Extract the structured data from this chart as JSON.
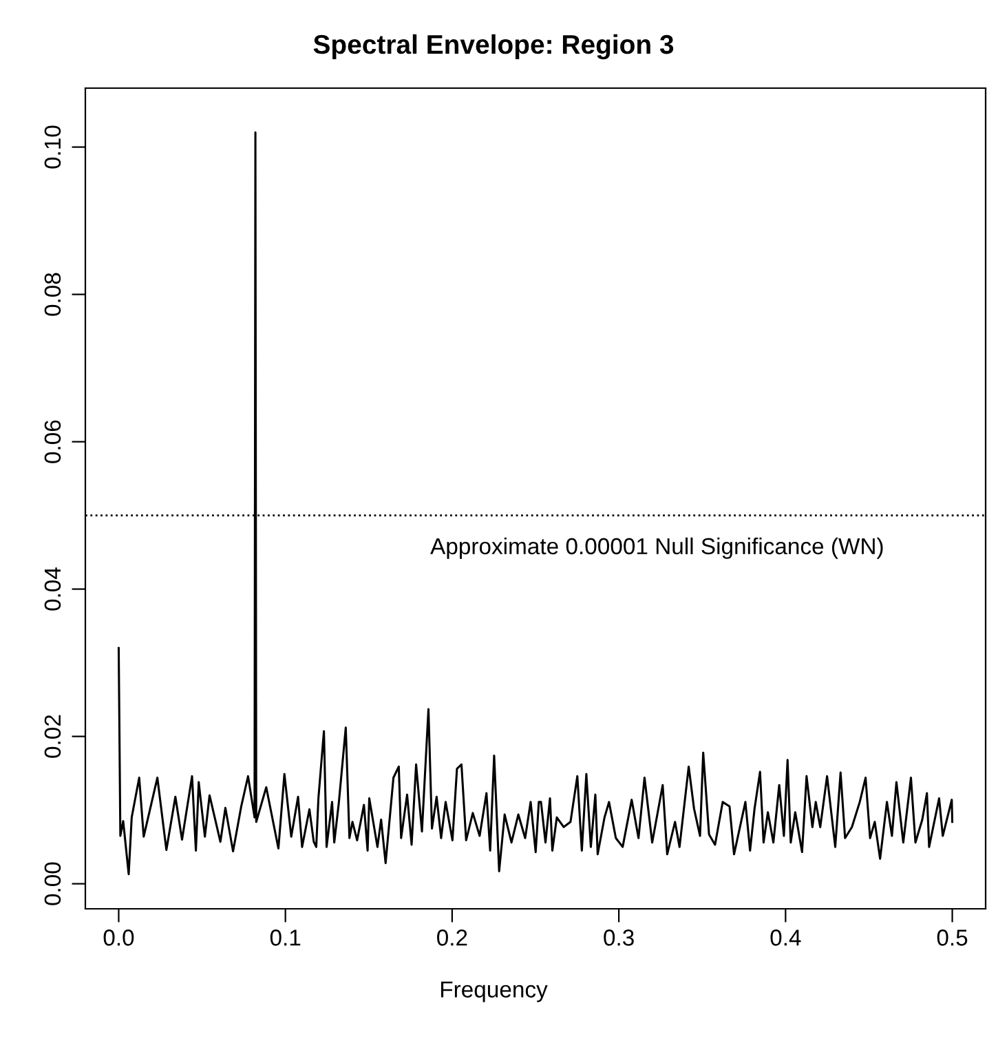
{
  "chart_data": {
    "type": "line",
    "title": "Spectral Envelope: Region 3",
    "xlabel": "Frequency",
    "xlim": [
      -0.02,
      0.52
    ],
    "ylim": [
      -0.0034,
      0.108
    ],
    "xticks": [
      {
        "value": 0,
        "label": "0.0"
      },
      {
        "value": 0.1,
        "label": "0.1"
      },
      {
        "value": 0.2,
        "label": "0.2"
      },
      {
        "value": 0.3,
        "label": "0.3"
      },
      {
        "value": 0.4,
        "label": "0.4"
      },
      {
        "value": 0.5,
        "label": "0.5"
      }
    ],
    "yticks": [
      {
        "value": 0,
        "label": "0.00"
      },
      {
        "value": 0.02,
        "label": "0.02"
      },
      {
        "value": 0.04,
        "label": "0.04"
      },
      {
        "value": 0.06,
        "label": "0.06"
      },
      {
        "value": 0.08,
        "label": "0.08"
      },
      {
        "value": 0.1,
        "label": "0.10"
      }
    ],
    "grid": false,
    "marker": "none",
    "line_style": "solid",
    "ref_lines": [
      {
        "axis": "y",
        "value": 0.05,
        "label": "Approximate 0.00001 Null Significance (WN)",
        "line_style": "dotted",
        "color": "#000000"
      }
    ],
    "series": [
      {
        "color": "#000000",
        "x": [
          0.0,
          0.001,
          0.0027,
          0.006,
          0.0078,
          0.0123,
          0.015,
          0.0232,
          0.0286,
          0.034,
          0.038,
          0.044,
          0.0463,
          0.048,
          0.0517,
          0.0545,
          0.061,
          0.064,
          0.0686,
          0.0735,
          0.0776,
          0.0815,
          0.082,
          0.0825,
          0.0885,
          0.0958,
          0.0994,
          0.1035,
          0.1076,
          0.11,
          0.1144,
          0.117,
          0.1185,
          0.1198,
          0.1231,
          0.1247,
          0.128,
          0.1293,
          0.132,
          0.1362,
          0.1384,
          0.1402,
          0.143,
          0.1471,
          0.1493,
          0.1503,
          0.1552,
          0.1574,
          0.1601,
          0.1648,
          0.168,
          0.1694,
          0.173,
          0.1757,
          0.1784,
          0.1819,
          0.1858,
          0.1879,
          0.1907,
          0.1934,
          0.1961,
          0.2002,
          0.2029,
          0.2056,
          0.2084,
          0.2124,
          0.2165,
          0.2206,
          0.2228,
          0.2252,
          0.2282,
          0.2315,
          0.2356,
          0.2397,
          0.2438,
          0.2471,
          0.2501,
          0.252,
          0.2533,
          0.256,
          0.2587,
          0.2601,
          0.2628,
          0.2669,
          0.271,
          0.2751,
          0.2778,
          0.2805,
          0.2832,
          0.2859,
          0.2873,
          0.2914,
          0.2941,
          0.2982,
          0.3023,
          0.3077,
          0.3118,
          0.3154,
          0.32,
          0.3263,
          0.329,
          0.3337,
          0.3364,
          0.3419,
          0.3451,
          0.3487,
          0.3506,
          0.3541,
          0.3577,
          0.3623,
          0.3664,
          0.3691,
          0.3759,
          0.3787,
          0.3814,
          0.3847,
          0.3868,
          0.3894,
          0.3927,
          0.3962,
          0.399,
          0.4012,
          0.4031,
          0.4058,
          0.4099,
          0.4126,
          0.4161,
          0.4181,
          0.4208,
          0.4249,
          0.4298,
          0.433,
          0.4357,
          0.4398,
          0.4445,
          0.448,
          0.4507,
          0.4535,
          0.4567,
          0.4608,
          0.4638,
          0.4665,
          0.4706,
          0.4752,
          0.4779,
          0.482,
          0.4848,
          0.4861,
          0.4921,
          0.4943,
          0.4997,
          0.5
        ],
        "values": [
          0.032,
          0.0065,
          0.0085,
          0.0013,
          0.009,
          0.0144,
          0.0064,
          0.0144,
          0.0046,
          0.0118,
          0.006,
          0.0146,
          0.0045,
          0.0138,
          0.0064,
          0.012,
          0.0057,
          0.0103,
          0.0044,
          0.0105,
          0.0146,
          0.009,
          0.102,
          0.0084,
          0.0131,
          0.0048,
          0.0149,
          0.0064,
          0.0118,
          0.005,
          0.0101,
          0.0057,
          0.005,
          0.0116,
          0.0207,
          0.005,
          0.0111,
          0.0056,
          0.0109,
          0.0212,
          0.0062,
          0.0084,
          0.0059,
          0.0107,
          0.0045,
          0.0116,
          0.005,
          0.0087,
          0.0028,
          0.0144,
          0.0159,
          0.0062,
          0.0121,
          0.0053,
          0.0162,
          0.0071,
          0.0237,
          0.0075,
          0.0118,
          0.0062,
          0.0111,
          0.0059,
          0.0156,
          0.0162,
          0.0059,
          0.0096,
          0.0065,
          0.0123,
          0.0045,
          0.0174,
          0.0017,
          0.0094,
          0.0056,
          0.0094,
          0.0062,
          0.0111,
          0.0043,
          0.0111,
          0.0111,
          0.0056,
          0.0116,
          0.0045,
          0.009,
          0.0077,
          0.0084,
          0.0146,
          0.0045,
          0.0149,
          0.005,
          0.0121,
          0.004,
          0.009,
          0.0111,
          0.0062,
          0.005,
          0.0114,
          0.0062,
          0.0144,
          0.0056,
          0.0134,
          0.004,
          0.0084,
          0.005,
          0.0159,
          0.0102,
          0.0065,
          0.0178,
          0.0067,
          0.0053,
          0.0111,
          0.0105,
          0.004,
          0.0111,
          0.0045,
          0.0102,
          0.0152,
          0.0056,
          0.0097,
          0.0056,
          0.0134,
          0.0065,
          0.0168,
          0.0056,
          0.0097,
          0.0043,
          0.0146,
          0.0077,
          0.0111,
          0.0077,
          0.0146,
          0.005,
          0.0151,
          0.0062,
          0.0077,
          0.0111,
          0.0144,
          0.0062,
          0.0084,
          0.0034,
          0.0111,
          0.0065,
          0.0138,
          0.0056,
          0.0144,
          0.0056,
          0.0087,
          0.0123,
          0.005,
          0.0116,
          0.0065,
          0.0114,
          0.0084
        ]
      }
    ]
  }
}
